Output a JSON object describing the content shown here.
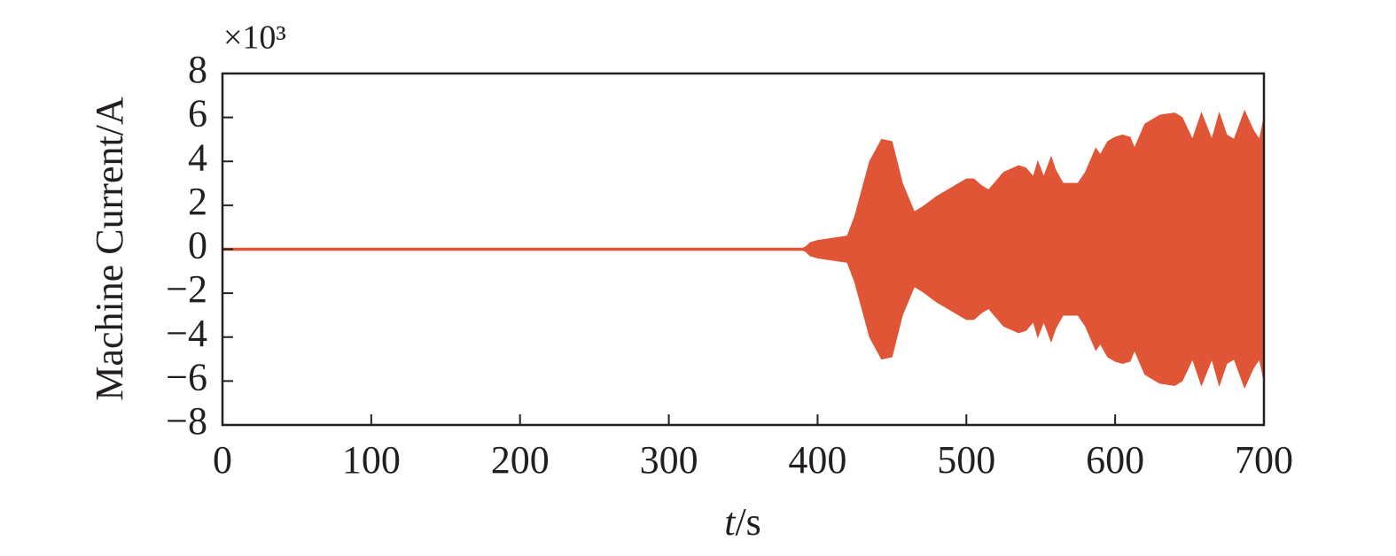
{
  "chart_data": {
    "type": "envelope",
    "ylabel": "Machine Current/A",
    "y_multiplier": "×10³",
    "xlabel": [
      "t",
      "/s"
    ],
    "color": "#e05535",
    "x": [
      0,
      40,
      100,
      200,
      300,
      390,
      392,
      395,
      400,
      410,
      420,
      425,
      435,
      443,
      450,
      457,
      465,
      470,
      480,
      490,
      500,
      505,
      510,
      515,
      520,
      525,
      535,
      540,
      545,
      548,
      552,
      557,
      560,
      565,
      575,
      580,
      587,
      590,
      595,
      600,
      605,
      610,
      613,
      620,
      630,
      640,
      645,
      652,
      658,
      665,
      670,
      675,
      680,
      687,
      693,
      697,
      700
    ],
    "upper": [
      0.05,
      0.05,
      0.05,
      0.05,
      0.05,
      0.05,
      0.1,
      0.3,
      0.4,
      0.5,
      0.6,
      1.5,
      4.0,
      5.0,
      4.9,
      3.0,
      1.7,
      1.9,
      2.4,
      2.8,
      3.2,
      3.2,
      2.9,
      2.7,
      3.1,
      3.5,
      3.8,
      3.7,
      3.3,
      4.0,
      3.3,
      4.2,
      3.6,
      3.0,
      3.0,
      3.5,
      4.6,
      4.3,
      4.9,
      5.1,
      5.2,
      5.1,
      4.6,
      5.7,
      6.1,
      6.2,
      6.0,
      5.0,
      6.2,
      5.0,
      6.2,
      5.2,
      5.0,
      6.3,
      5.4,
      5.0,
      6.0
    ],
    "lower": [
      -0.05,
      -0.05,
      -0.05,
      -0.05,
      -0.05,
      -0.05,
      -0.1,
      -0.3,
      -0.4,
      -0.5,
      -0.6,
      -1.5,
      -4.0,
      -5.0,
      -4.9,
      -3.0,
      -1.7,
      -1.9,
      -2.4,
      -2.8,
      -3.2,
      -3.2,
      -2.9,
      -2.7,
      -3.1,
      -3.5,
      -3.8,
      -3.7,
      -3.3,
      -4.0,
      -3.3,
      -4.2,
      -3.6,
      -3.0,
      -3.0,
      -3.5,
      -4.6,
      -4.3,
      -4.9,
      -5.1,
      -5.2,
      -5.1,
      -4.6,
      -5.7,
      -6.1,
      -6.2,
      -6.0,
      -5.0,
      -6.2,
      -5.0,
      -6.2,
      -5.2,
      -5.0,
      -6.3,
      -5.4,
      -5.0,
      -6.0
    ],
    "xlim": [
      0,
      700
    ],
    "xticks": [
      0,
      100,
      200,
      300,
      400,
      500,
      600,
      700
    ],
    "ylim": [
      -8,
      8
    ],
    "yticks": [
      {
        "value": -8,
        "label": "−8"
      },
      {
        "value": -6,
        "label": "−6"
      },
      {
        "value": -4,
        "label": "−4"
      },
      {
        "value": -2,
        "label": "−2"
      },
      0,
      2,
      4,
      6,
      8
    ]
  }
}
